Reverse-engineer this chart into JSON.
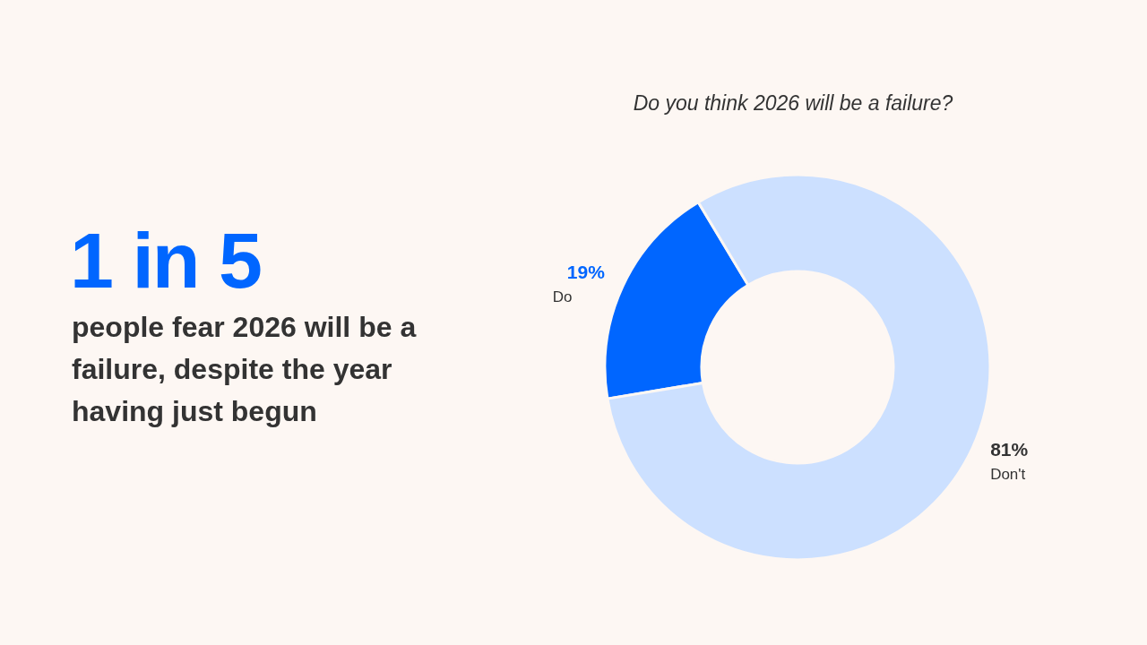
{
  "chart_data": {
    "type": "donut",
    "title": "Do you think 2026 will be a failure?",
    "categories": [
      "Do",
      "Don't"
    ],
    "values": [
      19,
      81
    ],
    "colors": [
      "#0066ff",
      "#cce0ff"
    ],
    "value_labels": [
      "19%",
      "81%"
    ],
    "annotations": [
      "1 in 5",
      "people fear 2026 will be a failure, despite the year having just begun"
    ],
    "legend": false
  }
}
